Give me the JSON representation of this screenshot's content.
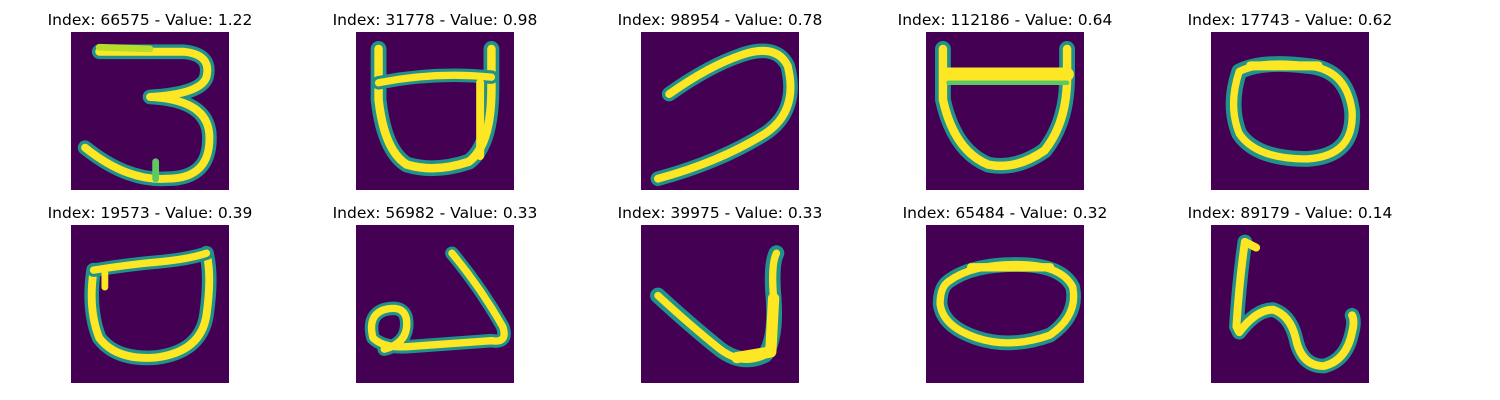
{
  "colors": {
    "background": "#440154",
    "mid": "#21918c",
    "stroke": "#fde725",
    "stroke_light": "#b5de2b",
    "stroke_glow": "#5ec962"
  },
  "panels": [
    {
      "title": "Index: 66575 - Value: 1.22",
      "glyph": "digit-three"
    },
    {
      "title": "Index: 31778 - Value: 0.98",
      "glyph": "cup-with-bar"
    },
    {
      "title": "Index: 98954 - Value: 0.78",
      "glyph": "hook-curve"
    },
    {
      "title": "Index: 112186 - Value: 0.64",
      "glyph": "cup-with-bar"
    },
    {
      "title": "Index: 17743 - Value: 0.62",
      "glyph": "oval-loop"
    },
    {
      "title": "Index: 19573 - Value: 0.39",
      "glyph": "cup-with-bar"
    },
    {
      "title": "Index: 56982 - Value: 0.33",
      "glyph": "loop-with-tail"
    },
    {
      "title": "Index: 39975 - Value: 0.33",
      "glyph": "check-curve"
    },
    {
      "title": "Index: 65484 - Value: 0.32",
      "glyph": "oval-loop"
    },
    {
      "title": "Index: 89179 - Value: 0.14",
      "glyph": "squiggle-stroke"
    }
  ]
}
